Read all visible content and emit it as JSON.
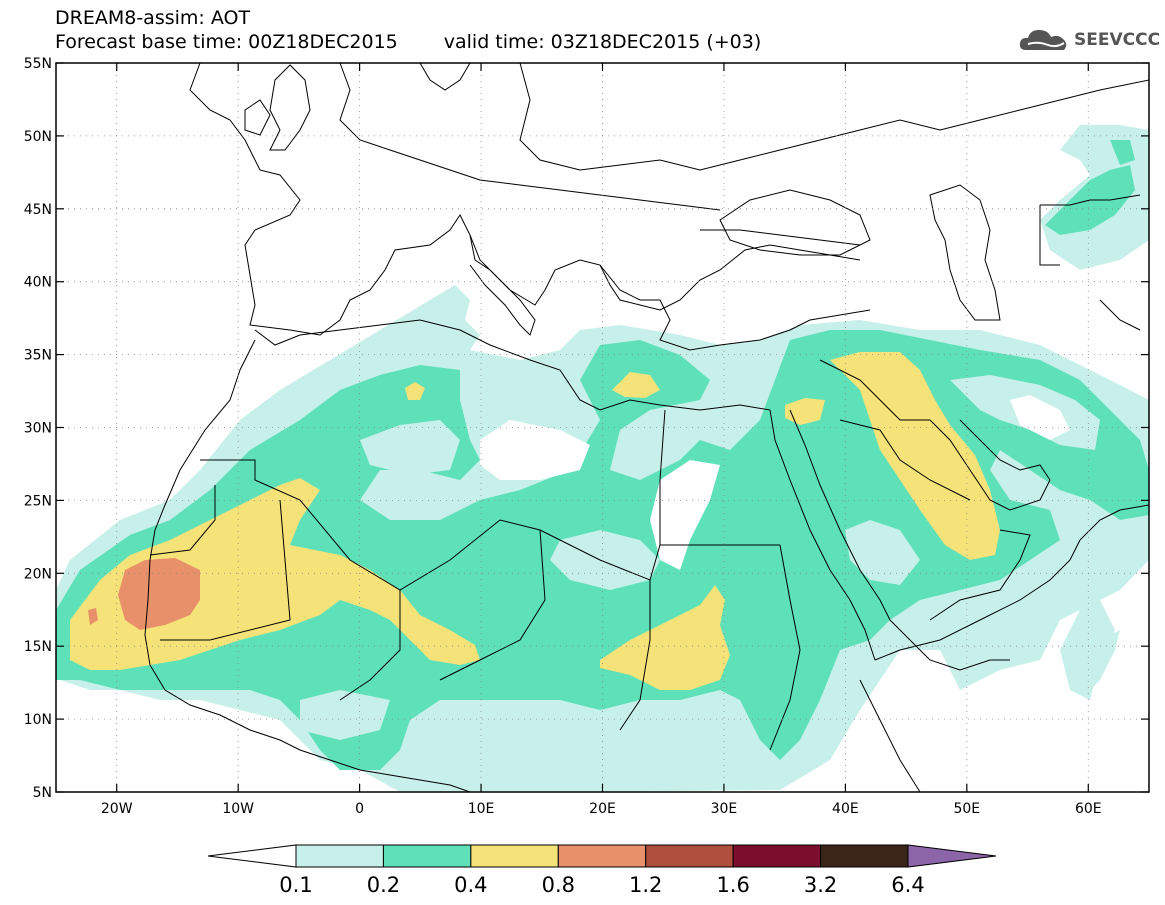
{
  "header": {
    "model": "DREAM8-assim: AOT",
    "base_time": "Forecast base time: 00Z18DEC2015",
    "valid_time": "valid time: 03Z18DEC2015 (+03)"
  },
  "logo": {
    "text": "SEEVCCC",
    "icon": "cloud-icon"
  },
  "map": {
    "lon_range": [
      -25,
      65
    ],
    "lat_range": [
      5,
      55
    ],
    "lon_ticks": [
      {
        "v": -20,
        "label": "20W"
      },
      {
        "v": -10,
        "label": "10W"
      },
      {
        "v": 0,
        "label": "0"
      },
      {
        "v": 10,
        "label": "10E"
      },
      {
        "v": 20,
        "label": "20E"
      },
      {
        "v": 30,
        "label": "30E"
      },
      {
        "v": 40,
        "label": "40E"
      },
      {
        "v": 50,
        "label": "50E"
      },
      {
        "v": 60,
        "label": "60E"
      }
    ],
    "lat_ticks": [
      {
        "v": 5,
        "label": "5N"
      },
      {
        "v": 10,
        "label": "10N"
      },
      {
        "v": 15,
        "label": "15N"
      },
      {
        "v": 20,
        "label": "20N"
      },
      {
        "v": 25,
        "label": "25N"
      },
      {
        "v": 30,
        "label": "30N"
      },
      {
        "v": 35,
        "label": "35N"
      },
      {
        "v": 40,
        "label": "40N"
      },
      {
        "v": 45,
        "label": "45N"
      },
      {
        "v": 50,
        "label": "50N"
      },
      {
        "v": 55,
        "label": "55N"
      }
    ],
    "grid": true
  },
  "colorbar": {
    "levels": [
      "0.1",
      "0.2",
      "0.4",
      "0.8",
      "1.2",
      "1.6",
      "3.2",
      "6.4"
    ],
    "colors": [
      "#ffffff",
      "#c8f0ea",
      "#5ee0b8",
      "#f5e37a",
      "#e8906a",
      "#b04e3e",
      "#7a0e2c",
      "#3a2518",
      "#8c64a8"
    ]
  }
}
